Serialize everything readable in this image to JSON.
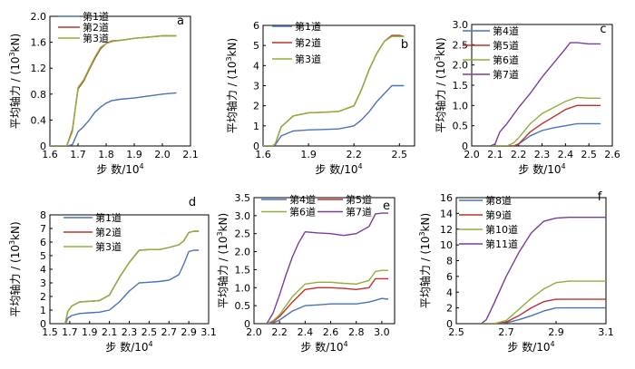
{
  "figure": {
    "xlabel_text": "步 数/",
    "xlabel_exp": "4",
    "ylabel_prefix": "平均轴力 / (",
    "ylabel_sup": "3",
    "ylabel_suffix": "kN)"
  },
  "colors": {
    "blue": "#4a72b8",
    "red": "#c0302c",
    "green": "#8faf3c",
    "purple": "#7a3d98"
  },
  "chart_data": [
    {
      "panel": "a",
      "type": "line",
      "xlim": [
        1.6,
        2.1
      ],
      "ylim": [
        0,
        2.0
      ],
      "xticks": [
        "1.6",
        "1.7",
        "1.8",
        "1.9",
        "2.0",
        "2.1"
      ],
      "yticks": [
        "0",
        "0.4",
        "0.8",
        "1.2",
        "1.6",
        "2.0"
      ],
      "series": [
        {
          "name": "第1道",
          "color": "blue",
          "x": [
            1.6,
            1.65,
            1.66,
            1.68,
            1.7,
            1.72,
            1.74,
            1.76,
            1.78,
            1.8,
            1.82,
            1.85,
            1.9,
            1.95,
            2.0,
            2.05
          ],
          "y": [
            0,
            0,
            0,
            0.02,
            0.22,
            0.3,
            0.4,
            0.52,
            0.6,
            0.66,
            0.7,
            0.72,
            0.74,
            0.77,
            0.8,
            0.82
          ]
        },
        {
          "name": "第2道",
          "color": "red",
          "x": [
            1.6,
            1.65,
            1.66,
            1.68,
            1.7,
            1.72,
            1.74,
            1.76,
            1.78,
            1.8,
            1.82,
            1.85,
            1.9,
            1.95,
            2.0,
            2.05
          ],
          "y": [
            0,
            0,
            0,
            0.25,
            0.88,
            1.0,
            1.18,
            1.35,
            1.5,
            1.58,
            1.62,
            1.63,
            1.66,
            1.68,
            1.7,
            1.7
          ]
        },
        {
          "name": "第3道",
          "color": "green",
          "x": [
            1.6,
            1.65,
            1.66,
            1.68,
            1.7,
            1.72,
            1.74,
            1.76,
            1.78,
            1.8,
            1.82,
            1.85,
            1.9,
            1.95,
            2.0,
            2.05
          ],
          "y": [
            0,
            0,
            0,
            0.22,
            0.9,
            1.02,
            1.2,
            1.37,
            1.52,
            1.58,
            1.61,
            1.63,
            1.66,
            1.68,
            1.7,
            1.7
          ]
        }
      ]
    },
    {
      "panel": "b",
      "type": "line",
      "xlim": [
        1.6,
        2.6
      ],
      "ylim": [
        0,
        6
      ],
      "xticks": [
        "1.6",
        "1.9",
        "2.2",
        "2.5"
      ],
      "xtick_values": [
        1.6,
        1.9,
        2.2,
        2.5
      ],
      "yticks": [
        "0",
        "1",
        "2",
        "3",
        "4",
        "5",
        "6"
      ],
      "series": [
        {
          "name": "第1道",
          "color": "blue",
          "x": [
            1.6,
            1.66,
            1.68,
            1.72,
            1.8,
            1.9,
            2.0,
            2.1,
            2.2,
            2.25,
            2.3,
            2.35,
            2.4,
            2.45,
            2.5,
            2.53
          ],
          "y": [
            0,
            0,
            0.05,
            0.5,
            0.75,
            0.8,
            0.82,
            0.85,
            1.0,
            1.3,
            1.7,
            2.2,
            2.6,
            3.0,
            3.0,
            3.0
          ]
        },
        {
          "name": "第2道",
          "color": "red",
          "x": [
            1.6,
            1.66,
            1.68,
            1.72,
            1.8,
            1.9,
            2.0,
            2.1,
            2.2,
            2.25,
            2.3,
            2.35,
            2.4,
            2.45,
            2.5,
            2.53
          ],
          "y": [
            0,
            0,
            0.1,
            0.95,
            1.5,
            1.65,
            1.68,
            1.72,
            2.0,
            2.8,
            3.8,
            4.6,
            5.2,
            5.5,
            5.5,
            5.45
          ]
        },
        {
          "name": "第3道",
          "color": "green",
          "x": [
            1.6,
            1.66,
            1.68,
            1.72,
            1.8,
            1.9,
            2.0,
            2.1,
            2.2,
            2.25,
            2.3,
            2.35,
            2.4,
            2.45,
            2.5,
            2.53
          ],
          "y": [
            0,
            0,
            0.1,
            0.95,
            1.5,
            1.65,
            1.68,
            1.72,
            2.0,
            2.8,
            3.8,
            4.6,
            5.2,
            5.45,
            5.45,
            5.45
          ]
        }
      ]
    },
    {
      "panel": "c",
      "type": "line",
      "xlim": [
        2.0,
        2.6
      ],
      "ylim": [
        0,
        3.0
      ],
      "xticks": [
        "2.0",
        "2.1",
        "2.2",
        "2.3",
        "2.4",
        "2.5",
        "2.6"
      ],
      "yticks": [
        "0",
        "0.5",
        "1.0",
        "1.5",
        "2.0",
        "2.5",
        "3.0"
      ],
      "series": [
        {
          "name": "第4道",
          "color": "blue",
          "x": [
            2.08,
            2.15,
            2.18,
            2.2,
            2.25,
            2.3,
            2.35,
            2.4,
            2.45,
            2.5,
            2.55
          ],
          "y": [
            0,
            0,
            0,
            0.05,
            0.25,
            0.38,
            0.45,
            0.5,
            0.55,
            0.55,
            0.55
          ]
        },
        {
          "name": "第5道",
          "color": "red",
          "x": [
            2.08,
            2.15,
            2.18,
            2.2,
            2.25,
            2.3,
            2.35,
            2.4,
            2.45,
            2.5,
            2.55
          ],
          "y": [
            0,
            0,
            0,
            0.05,
            0.35,
            0.55,
            0.72,
            0.9,
            1.0,
            1.0,
            1.0
          ]
        },
        {
          "name": "第6道",
          "color": "green",
          "x": [
            2.08,
            2.15,
            2.18,
            2.2,
            2.25,
            2.3,
            2.35,
            2.4,
            2.45,
            2.5,
            2.55
          ],
          "y": [
            0,
            0,
            0.08,
            0.2,
            0.55,
            0.8,
            0.95,
            1.1,
            1.2,
            1.18,
            1.18
          ]
        },
        {
          "name": "第7道",
          "color": "purple",
          "x": [
            2.08,
            2.1,
            2.12,
            2.15,
            2.2,
            2.25,
            2.3,
            2.35,
            2.4,
            2.42,
            2.45,
            2.5,
            2.55
          ],
          "y": [
            0,
            0.05,
            0.35,
            0.55,
            0.95,
            1.3,
            1.7,
            2.05,
            2.4,
            2.55,
            2.55,
            2.52,
            2.52
          ]
        }
      ]
    },
    {
      "panel": "d",
      "type": "line",
      "xlim": [
        1.5,
        3.1
      ],
      "ylim": [
        0,
        8
      ],
      "xticks": [
        "1.5",
        "1.7",
        "1.9",
        "2.1",
        "2.3",
        "2.5",
        "2.7",
        "2.9",
        "3.1"
      ],
      "yticks": [
        "0",
        "1",
        "2",
        "3",
        "4",
        "5",
        "6",
        "7",
        "8"
      ],
      "series": [
        {
          "name": "第1道",
          "color": "blue",
          "x": [
            1.65,
            1.66,
            1.68,
            1.72,
            1.8,
            1.9,
            2.0,
            2.1,
            2.2,
            2.3,
            2.4,
            2.5,
            2.6,
            2.7,
            2.8,
            2.85,
            2.9,
            2.95,
            3.0
          ],
          "y": [
            0,
            0.05,
            0.4,
            0.6,
            0.75,
            0.8,
            0.85,
            1.0,
            1.6,
            2.4,
            3.0,
            3.05,
            3.1,
            3.2,
            3.6,
            4.4,
            5.3,
            5.4,
            5.4
          ]
        },
        {
          "name": "第2道",
          "color": "red",
          "x": [
            1.65,
            1.66,
            1.68,
            1.72,
            1.8,
            1.9,
            2.0,
            2.1,
            2.2,
            2.3,
            2.4,
            2.5,
            2.6,
            2.7,
            2.8,
            2.85,
            2.9,
            2.95,
            3.0
          ],
          "y": [
            0,
            0.2,
            0.9,
            1.3,
            1.6,
            1.65,
            1.7,
            2.1,
            3.4,
            4.5,
            5.4,
            5.45,
            5.45,
            5.6,
            5.8,
            6.1,
            6.7,
            6.8,
            6.8
          ]
        },
        {
          "name": "第3道",
          "color": "green",
          "x": [
            1.65,
            1.66,
            1.68,
            1.72,
            1.8,
            1.9,
            2.0,
            2.1,
            2.2,
            2.3,
            2.4,
            2.5,
            2.6,
            2.7,
            2.8,
            2.85,
            2.9,
            2.95,
            3.0
          ],
          "y": [
            0,
            0.2,
            0.9,
            1.3,
            1.6,
            1.65,
            1.7,
            2.1,
            3.4,
            4.5,
            5.4,
            5.45,
            5.45,
            5.6,
            5.8,
            6.1,
            6.7,
            6.8,
            6.8
          ]
        }
      ]
    },
    {
      "panel": "e",
      "type": "line",
      "xlim": [
        2.0,
        3.1
      ],
      "ylim": [
        0,
        3.5
      ],
      "xticks": [
        "2.0",
        "2.2",
        "2.4",
        "2.6",
        "2.8",
        "3.0"
      ],
      "yticks": [
        "0",
        "0.5",
        "1.0",
        "1.5",
        "2.0",
        "2.5",
        "3.0",
        "3.5"
      ],
      "series": [
        {
          "name": "第4道",
          "color": "blue",
          "x": [
            2.1,
            2.15,
            2.2,
            2.3,
            2.4,
            2.5,
            2.6,
            2.7,
            2.8,
            2.9,
            2.95,
            3.0,
            3.05
          ],
          "y": [
            0,
            0.02,
            0.1,
            0.35,
            0.5,
            0.52,
            0.55,
            0.55,
            0.55,
            0.6,
            0.65,
            0.7,
            0.68
          ]
        },
        {
          "name": "第5道",
          "color": "red",
          "x": [
            2.1,
            2.15,
            2.2,
            2.3,
            2.4,
            2.5,
            2.6,
            2.7,
            2.8,
            2.9,
            2.95,
            3.0,
            3.05
          ],
          "y": [
            0,
            0.05,
            0.2,
            0.6,
            0.95,
            1.0,
            1.0,
            0.98,
            0.95,
            1.0,
            1.25,
            1.25,
            1.25
          ]
        },
        {
          "name": "第6道",
          "color": "green",
          "x": [
            2.1,
            2.15,
            2.2,
            2.3,
            2.4,
            2.5,
            2.6,
            2.7,
            2.8,
            2.9,
            2.95,
            3.0,
            3.05
          ],
          "y": [
            0,
            0.08,
            0.25,
            0.75,
            1.1,
            1.15,
            1.15,
            1.12,
            1.1,
            1.2,
            1.45,
            1.48,
            1.48
          ]
        },
        {
          "name": "第7道",
          "color": "purple",
          "x": [
            2.1,
            2.15,
            2.2,
            2.25,
            2.3,
            2.35,
            2.4,
            2.5,
            2.6,
            2.7,
            2.8,
            2.9,
            2.95,
            3.0,
            3.05
          ],
          "y": [
            0,
            0.3,
            0.8,
            1.35,
            1.85,
            2.25,
            2.55,
            2.52,
            2.5,
            2.45,
            2.5,
            2.7,
            3.05,
            3.07,
            3.07
          ]
        }
      ]
    },
    {
      "panel": "f",
      "type": "line",
      "xlim": [
        2.5,
        3.1
      ],
      "ylim": [
        0,
        16
      ],
      "xticks": [
        "2.5",
        "2.7",
        "2.9",
        "3.1"
      ],
      "yticks": [
        "0",
        "2",
        "4",
        "6",
        "8",
        "10",
        "12",
        "14",
        "16"
      ],
      "series": [
        {
          "name": "第8道",
          "color": "blue",
          "x": [
            2.6,
            2.65,
            2.7,
            2.75,
            2.8,
            2.85,
            2.9,
            2.95,
            3.0,
            3.05,
            3.1
          ],
          "y": [
            0,
            0,
            0.1,
            0.5,
            1.0,
            1.6,
            2.0,
            2.0,
            2.0,
            2.0,
            2.0
          ]
        },
        {
          "name": "第9道",
          "color": "red",
          "x": [
            2.6,
            2.65,
            2.7,
            2.75,
            2.8,
            2.85,
            2.9,
            2.95,
            3.0,
            3.05,
            3.1
          ],
          "y": [
            0,
            0,
            0.2,
            1.0,
            2.0,
            2.8,
            3.1,
            3.1,
            3.1,
            3.1,
            3.1
          ]
        },
        {
          "name": "第10道",
          "color": "green",
          "x": [
            2.6,
            2.65,
            2.7,
            2.75,
            2.8,
            2.85,
            2.9,
            2.95,
            3.0,
            3.05,
            3.1
          ],
          "y": [
            0,
            0,
            0.4,
            1.8,
            3.2,
            4.4,
            5.2,
            5.4,
            5.4,
            5.4,
            5.4
          ]
        },
        {
          "name": "第11道",
          "color": "purple",
          "x": [
            2.6,
            2.62,
            2.65,
            2.7,
            2.75,
            2.8,
            2.85,
            2.9,
            2.95,
            3.0,
            3.05,
            3.1
          ],
          "y": [
            0,
            0.5,
            2.5,
            6.0,
            9.0,
            11.5,
            13.0,
            13.4,
            13.5,
            13.5,
            13.5,
            13.5
          ]
        }
      ]
    }
  ]
}
